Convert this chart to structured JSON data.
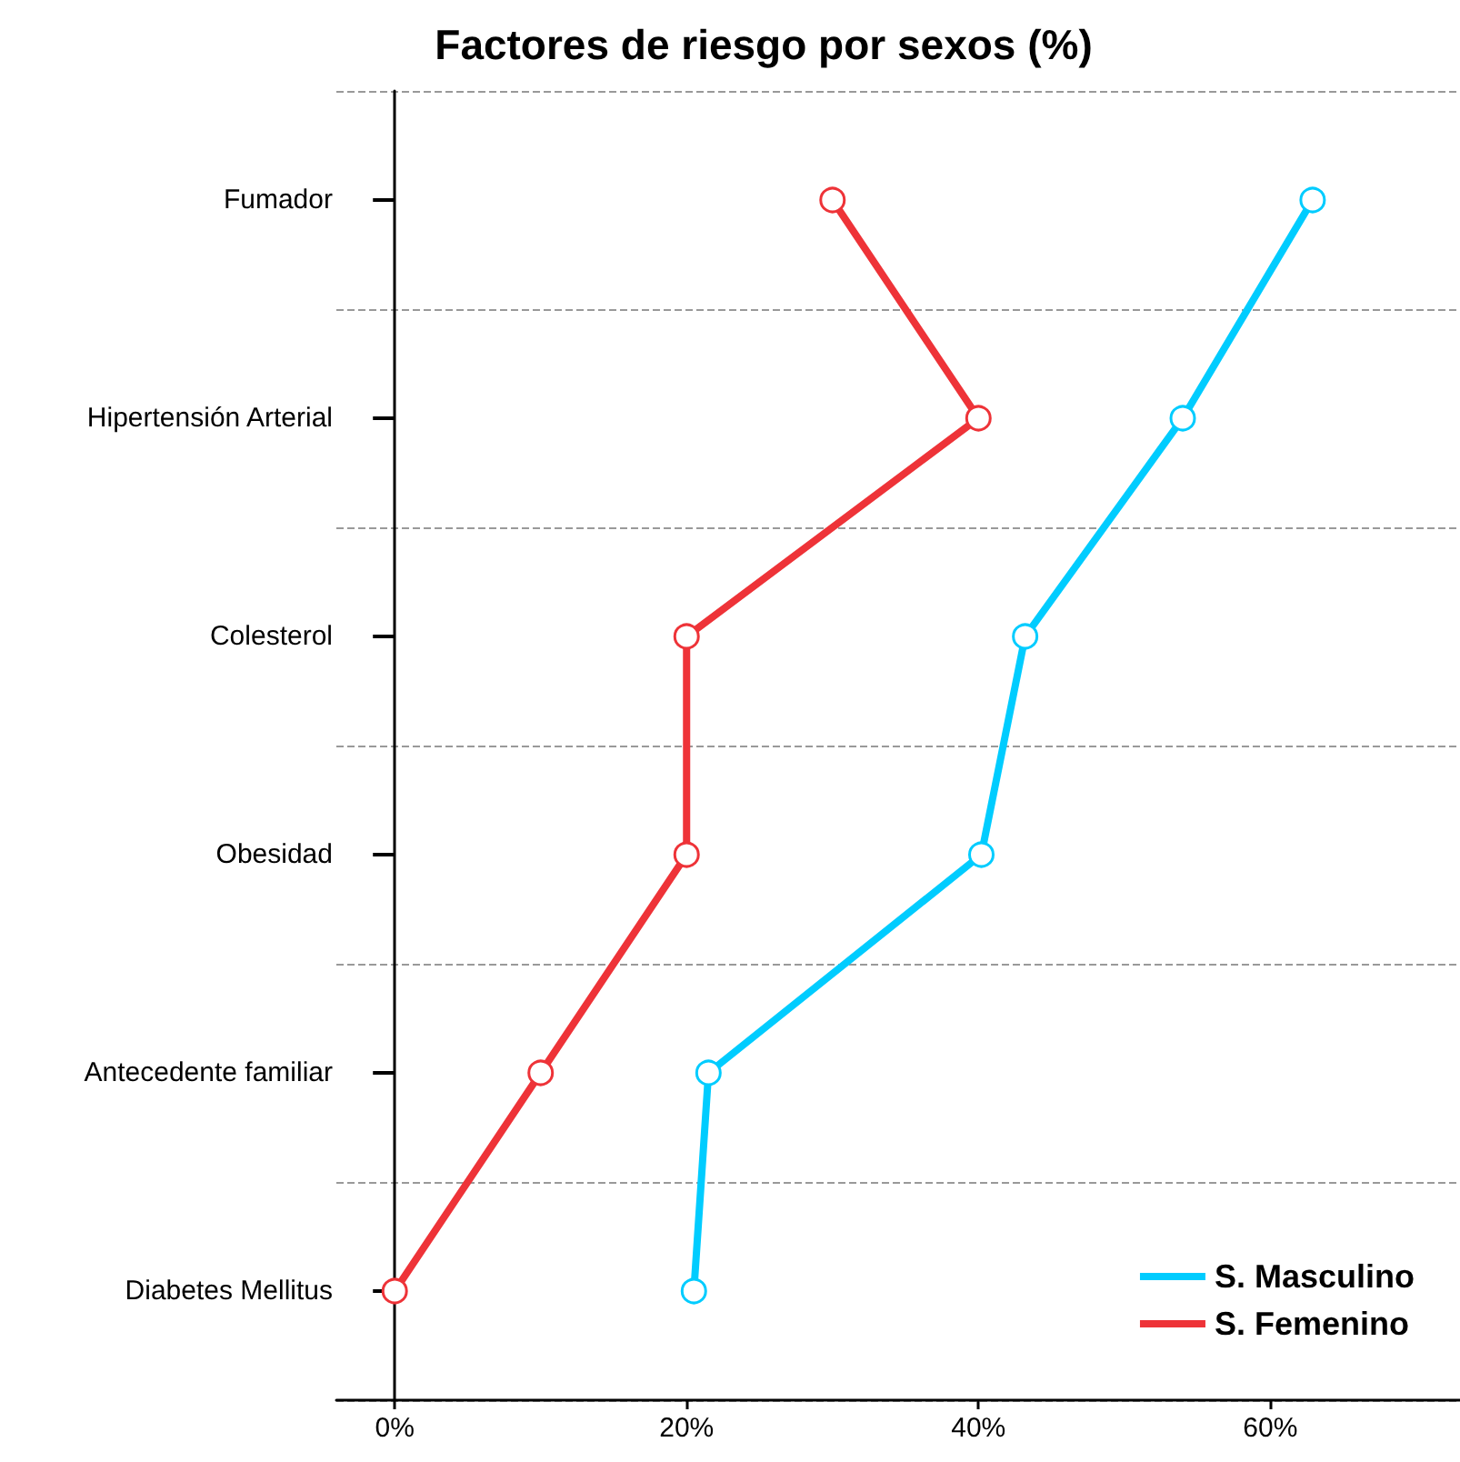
{
  "chart_data": {
    "type": "line",
    "orientation": "horizontal",
    "title": "Factores de riesgo por sexos (%)",
    "categories": [
      "Fumador",
      "Hipertensión Arterial",
      "Colesterol",
      "Obesidad",
      "Antecedente familiar",
      "Diabetes Mellitus"
    ],
    "series": [
      {
        "name": "S. Masculino",
        "color": "#00ccff",
        "values": [
          62.9,
          54,
          43.2,
          40.2,
          21.5,
          20.5
        ]
      },
      {
        "name": "S. Femenino",
        "color": "#ee3338",
        "values": [
          30,
          40,
          20,
          20,
          10,
          0
        ]
      }
    ],
    "xlim": [
      -4,
      73
    ],
    "xticks": [
      {
        "value": 0,
        "label": "0%"
      },
      {
        "value": 20,
        "label": "20%"
      },
      {
        "value": 40,
        "label": "40%"
      },
      {
        "value": 60,
        "label": "60%"
      }
    ],
    "grid": "y",
    "legend": "bottom right",
    "marker": "circle",
    "line_style": "solid"
  }
}
